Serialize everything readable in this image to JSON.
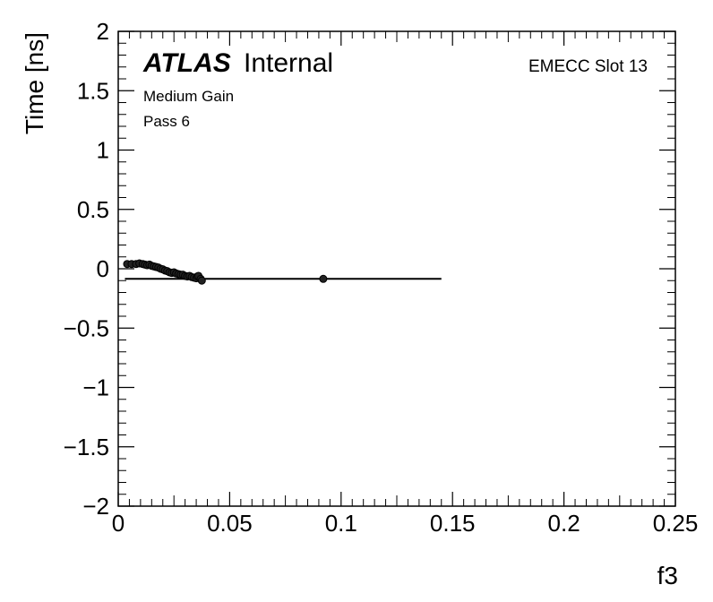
{
  "chart_data": {
    "type": "scatter",
    "xlabel": "f3",
    "ylabel": "Time [ns]",
    "xlim": [
      0,
      0.25
    ],
    "ylim": [
      -2,
      2
    ],
    "x_ticks": [
      0,
      0.05,
      0.1,
      0.15,
      0.2,
      0.25
    ],
    "x_tick_labels": [
      "0",
      "0.05",
      "0.1",
      "0.15",
      "0.2",
      "0.25"
    ],
    "y_ticks": [
      -2,
      -1.5,
      -1,
      -0.5,
      0,
      0.5,
      1,
      1.5,
      2
    ],
    "y_tick_labels": [
      "−2",
      "−1.5",
      "−1",
      "−0.5",
      "0",
      "0.5",
      "1",
      "1.5",
      "2"
    ],
    "grid": false,
    "annotations": {
      "atlas": "ATLAS",
      "internal": "Internal",
      "gain": "Medium Gain",
      "pass": "Pass 6",
      "slot": "EMECC Slot 13"
    },
    "points": [
      {
        "x": 0.004,
        "y": 0.04
      },
      {
        "x": 0.006,
        "y": 0.04
      },
      {
        "x": 0.008,
        "y": 0.04
      },
      {
        "x": 0.0095,
        "y": 0.045
      },
      {
        "x": 0.011,
        "y": 0.04
      },
      {
        "x": 0.012,
        "y": 0.035
      },
      {
        "x": 0.013,
        "y": 0.03
      },
      {
        "x": 0.014,
        "y": 0.035
      },
      {
        "x": 0.015,
        "y": 0.025
      },
      {
        "x": 0.016,
        "y": 0.02
      },
      {
        "x": 0.017,
        "y": 0.015
      },
      {
        "x": 0.018,
        "y": 0.01
      },
      {
        "x": 0.019,
        "y": 0.0
      },
      {
        "x": 0.02,
        "y": -0.005
      },
      {
        "x": 0.021,
        "y": -0.015
      },
      {
        "x": 0.022,
        "y": -0.02
      },
      {
        "x": 0.023,
        "y": -0.03
      },
      {
        "x": 0.024,
        "y": -0.035
      },
      {
        "x": 0.025,
        "y": -0.03
      },
      {
        "x": 0.026,
        "y": -0.04
      },
      {
        "x": 0.027,
        "y": -0.045
      },
      {
        "x": 0.028,
        "y": -0.05
      },
      {
        "x": 0.029,
        "y": -0.05
      },
      {
        "x": 0.03,
        "y": -0.06
      },
      {
        "x": 0.031,
        "y": -0.065
      },
      {
        "x": 0.032,
        "y": -0.06
      },
      {
        "x": 0.033,
        "y": -0.07
      },
      {
        "x": 0.034,
        "y": -0.075
      },
      {
        "x": 0.035,
        "y": -0.08
      },
      {
        "x": 0.0355,
        "y": -0.065
      },
      {
        "x": 0.036,
        "y": -0.06
      },
      {
        "x": 0.037,
        "y": -0.085
      },
      {
        "x": 0.0375,
        "y": -0.1
      },
      {
        "x": 0.092,
        "y": -0.085
      }
    ],
    "fit_line": {
      "x": [
        0.003,
        0.145
      ],
      "y": [
        -0.085,
        -0.085
      ]
    },
    "curve": {
      "x": [
        0.003,
        0.012,
        0.02,
        0.028,
        0.036,
        0.0375
      ],
      "y": [
        0.045,
        0.04,
        0.0,
        -0.045,
        -0.08,
        -0.085
      ]
    }
  }
}
